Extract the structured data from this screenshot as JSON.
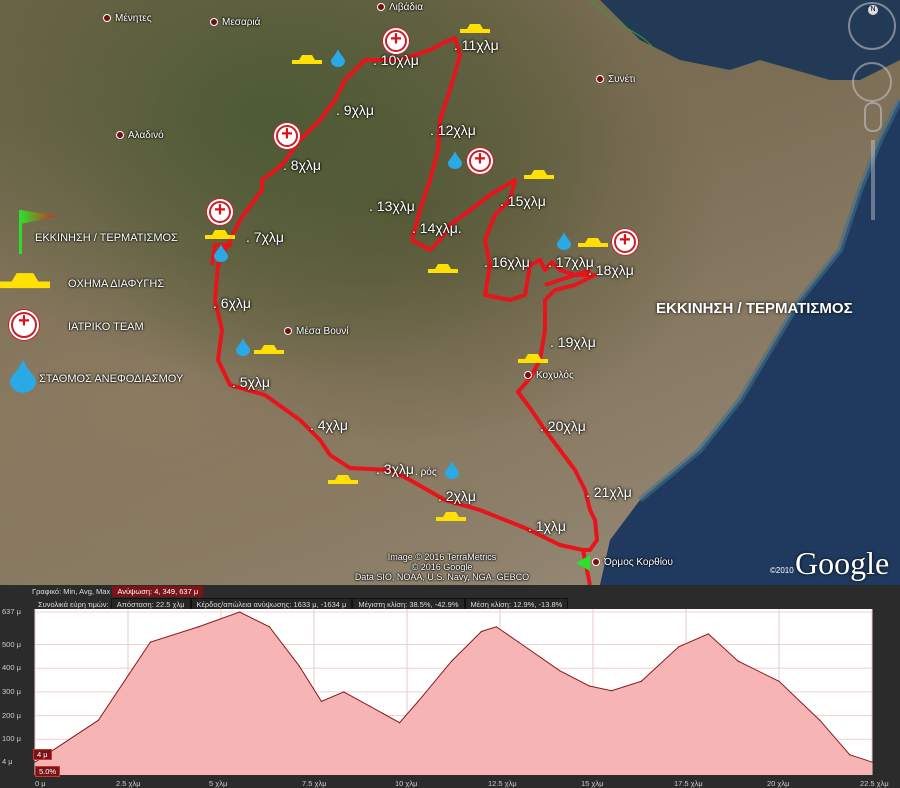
{
  "map": {
    "places": [
      "Μένητες",
      "Μεσαριά",
      "Λιβάδια",
      "Συνέτι",
      "Αλαδινό",
      "Μέσα Βουνί",
      "Κοχυλός",
      "Όρμος Κορθίου"
    ],
    "km_markers": [
      "1χλμ",
      "2χλμ",
      "3χλμ",
      "4χλμ",
      "5χλμ",
      "6χλμ",
      "7χλμ",
      "8χλμ",
      "9χλμ",
      "10χλμ",
      "11χλμ",
      "12χλμ",
      "13χλμ",
      "14χλμ.",
      "15χλμ",
      "16χλμ",
      "17χλμ",
      "18χλμ",
      "19χλμ",
      "20χλμ",
      "21χλμ"
    ],
    "ros_fragment": "ρός",
    "start_finish_label": "ΕΚΚΙΝΗΣΗ / ΤΕΡΜΑΤΙΣΜΟΣ",
    "route_color": "#e8141c",
    "legend": {
      "start_finish": "ΕΚΚΙΝΗΣΗ / ΤΕΡΜΑΤΙΣΜΟΣ",
      "escape_vehicle": "ΟΧΗΜΑ ΔΙΑΦΥΓΗΣ",
      "medical_team": "ΙΑΤΡΙΚΟ ΤΕΑΜ",
      "refuel_station": "ΣΤΑΘΜΟΣ ΑΝΕΦΟΔΙΑΣΜΟΥ"
    },
    "attribution": [
      "Image © 2016 TerraMetrics",
      "© 2016 Google",
      "Data SIO, NOAA, U.S. Navy, NGA, GEBCO"
    ],
    "logo": "Google",
    "logo_year": "©2010",
    "compass_north": "N"
  },
  "profile": {
    "graph_label": "Γραφικό: Min, Avg, Max",
    "elevation_summary": "Ανύψωση: 4, 349, 637 μ",
    "totals_label": "Συνολικά εύρη τιμών:",
    "distance": "Απόσταση: 22.5 χλμ",
    "gain_loss": "Κέρδος/απώλεια ανύψωσης: 1633 μ, -1634 μ",
    "max_slope": "Μέγιστη κλίση: 38.5%, -42.9%",
    "avg_slope": "Μέση κλίση: 12.9%, -13.8%",
    "cursor_elevation": "4 μ",
    "cursor_slope": "5.0%"
  },
  "chart_data": {
    "type": "area",
    "xlabel": "",
    "ylabel": "",
    "xlim": [
      0,
      22.5
    ],
    "ylim": [
      0,
      637
    ],
    "x_ticks": [
      "0 μ",
      "2.5 χλμ",
      "5 χλμ",
      "7.5 χλμ",
      "10 χλμ",
      "12.5 χλμ",
      "15 χλμ",
      "17.5 χλμ",
      "20 χλμ",
      "22.5 χλμ"
    ],
    "y_ticks": [
      "637 μ",
      "500 μ",
      "400 μ",
      "300 μ",
      "200 μ",
      "100 μ",
      "4 μ"
    ],
    "y_tick_values": [
      637,
      500,
      400,
      300,
      200,
      100,
      4
    ],
    "x_km": [
      0,
      1.7,
      3.1,
      4.4,
      5.5,
      6.3,
      7.1,
      7.7,
      8.3,
      9.0,
      9.8,
      10.3,
      11.2,
      12.0,
      12.4,
      13.0,
      14.1,
      14.9,
      15.5,
      16.3,
      17.3,
      18.1,
      18.9,
      20.0,
      21.1,
      21.9,
      22.5
    ],
    "elevation_m": [
      4,
      180,
      510,
      575,
      637,
      575,
      410,
      260,
      300,
      240,
      170,
      260,
      430,
      555,
      575,
      510,
      390,
      325,
      305,
      345,
      490,
      545,
      430,
      345,
      180,
      35,
      4
    ],
    "fill_color": "#f7b4b4",
    "line_color": "#8b1a1a",
    "grid": true
  }
}
